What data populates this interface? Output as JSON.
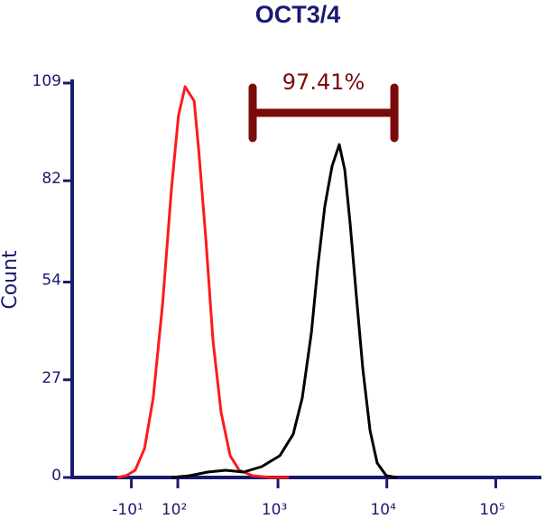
{
  "chart_data": {
    "type": "histogram-overlay",
    "title": "OCT3/4",
    "y_label": "Count",
    "xscale": "biexponential",
    "xlim": [
      -180,
      262144
    ],
    "xticks": [
      {
        "value": -10,
        "label": "-10¹"
      },
      {
        "value": 100,
        "label": "10²"
      },
      {
        "value": 1000,
        "label": "10³"
      },
      {
        "value": 10000,
        "label": "10⁴"
      },
      {
        "value": 100000,
        "label": "10⁵"
      }
    ],
    "ylim": [
      0,
      109
    ],
    "yticks": [
      0,
      27,
      54,
      82,
      109
    ],
    "gate": {
      "value": 97.41,
      "value_label": "97.41%",
      "x_range": [
        583,
        11730
      ],
      "color": "#7b0a0a"
    },
    "series": [
      {
        "color": "#ff1a1a",
        "x": [
          -41,
          -21,
          -2,
          18,
          37,
          59,
          82,
          102,
          123,
          139,
          156,
          175,
          208,
          244,
          293,
          358,
          436,
          583,
          857,
          1258
        ],
        "values": [
          0,
          0.5,
          2,
          8,
          22,
          48,
          80,
          100,
          108,
          106,
          104,
          90,
          65,
          38,
          18,
          6,
          2,
          0.5,
          0,
          0
        ]
      },
      {
        "color": "#000000",
        "x": [
          82,
          139,
          216,
          324,
          480,
          707,
          1039,
          1384,
          1675,
          2029,
          2320,
          2700,
          3140,
          3660,
          4110,
          4610,
          5260,
          6020,
          7010,
          8160,
          9880,
          12410
        ],
        "values": [
          0,
          0.5,
          1.5,
          2,
          1.5,
          3,
          6,
          12,
          22,
          40,
          58,
          75,
          86,
          92,
          85,
          70,
          50,
          30,
          13,
          4,
          0.5,
          0
        ]
      }
    ]
  }
}
